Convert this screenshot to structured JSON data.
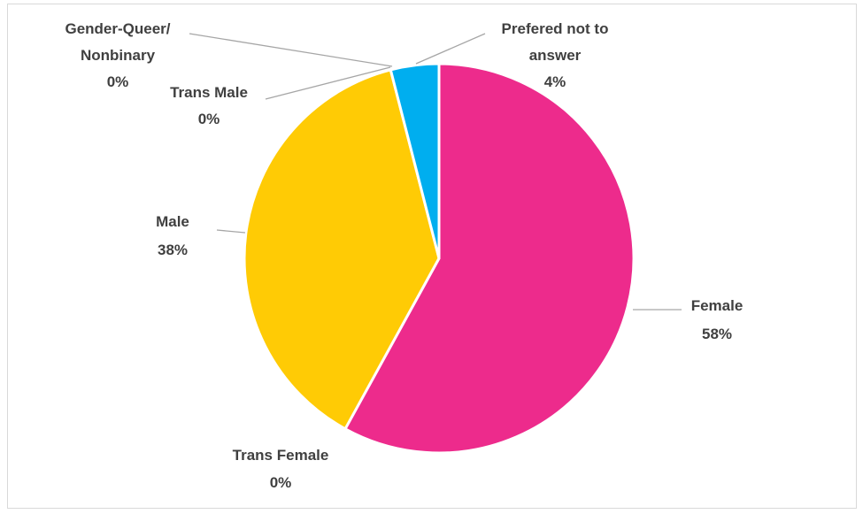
{
  "chart_data": {
    "type": "pie",
    "title": "",
    "slices": [
      {
        "label": "Female",
        "value": 58,
        "display": "58%",
        "color": "#ED2B8C"
      },
      {
        "label": "Trans Female",
        "value": 0,
        "display": "0%",
        "color": "#ED2B8C"
      },
      {
        "label": "Male",
        "value": 38,
        "display": "38%",
        "color": "#FFCB05"
      },
      {
        "label": "Trans Male",
        "value": 0,
        "display": "0%",
        "color": "#4CAF50"
      },
      {
        "label": "Gender-Queer/ Nonbinary",
        "value": 0,
        "display": "0%",
        "color": "#7F7F7F"
      },
      {
        "label": "Prefered not to answer",
        "value": 4,
        "display": "4%",
        "color": "#00AEEF"
      }
    ],
    "legend": "none",
    "data_labels": "outside with leader lines"
  }
}
